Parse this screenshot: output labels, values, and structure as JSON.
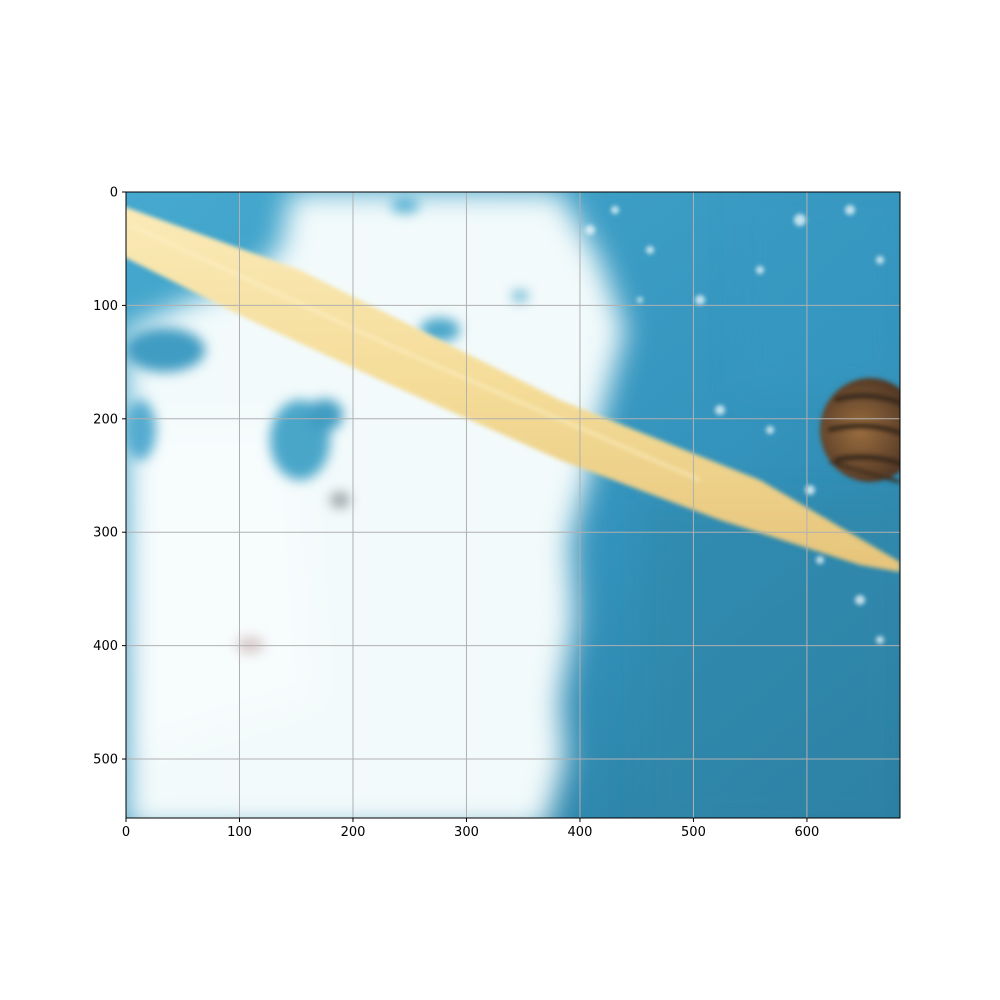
{
  "figure": {
    "x_ticks": [
      "0",
      "100",
      "200",
      "300",
      "400",
      "500",
      "600"
    ],
    "y_ticks": [
      "0",
      "100",
      "200",
      "300",
      "400",
      "500"
    ],
    "grid": true,
    "y_axis_inverted": true,
    "x_range": [
      0,
      682
    ],
    "y_range": [
      0,
      552
    ]
  },
  "photo": {
    "subject": "bee-near-wooden-stick-over-water",
    "colors": {
      "water": "#3a9cc4",
      "water_dark": "#2b7fa6",
      "foam": "#eef8fa",
      "stick": "#f4dc98",
      "bee_brown": "#7a5532",
      "bee_dark": "#3a2a1c",
      "grid": "#b0b0b0"
    }
  }
}
